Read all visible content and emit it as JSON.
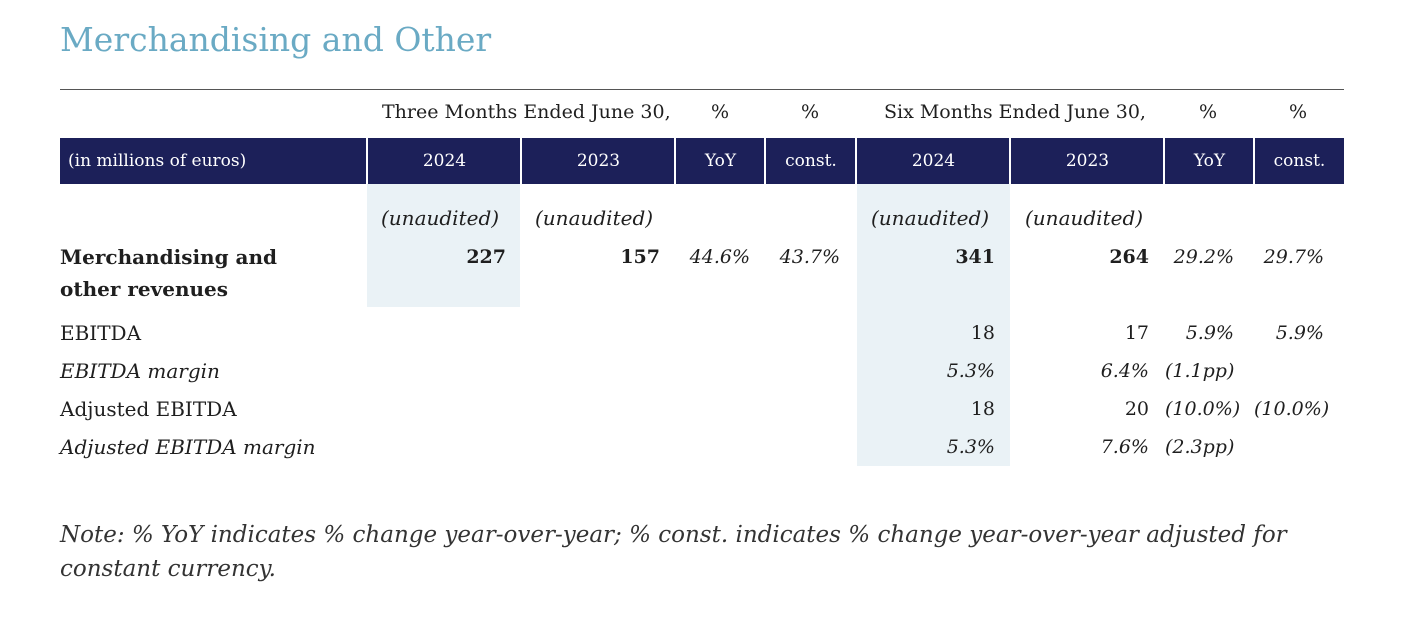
{
  "title": "Merchandising and Other",
  "groups": {
    "three_months": "Three Months Ended June 30,",
    "pct_yoy": "%",
    "pct_const": "%",
    "six_months": "Six Months Ended June 30,",
    "pct_yoy_6": "%",
    "pct_const_6": "%"
  },
  "header": {
    "unit_label": "(in millions of euros)",
    "cols": [
      "2024",
      "2023",
      "YoY",
      "const.",
      "2024",
      "2023",
      "YoY",
      "const."
    ]
  },
  "unaudited": [
    "(unaudited)",
    "(unaudited)",
    "(unaudited)",
    "(unaudited)"
  ],
  "rows": [
    {
      "label_line1": "Merchandising and",
      "label_line2": "other revenues",
      "values": [
        "227",
        "157",
        "44.6%",
        "43.7%",
        "341",
        "264",
        "29.2%",
        "29.7%"
      ]
    },
    {
      "label": "EBITDA",
      "values": [
        "",
        "",
        "",
        "",
        "18",
        "17",
        "5.9%",
        "5.9%"
      ]
    },
    {
      "label": "EBITDA margin",
      "values": [
        "",
        "",
        "",
        "",
        "5.3%",
        "6.4%",
        "(1.1pp)",
        ""
      ]
    },
    {
      "label": "Adjusted EBITDA",
      "values": [
        "",
        "",
        "",
        "",
        "18",
        "20",
        "(10.0%)",
        "(10.0%)"
      ]
    },
    {
      "label": "Adjusted EBITDA margin",
      "values": [
        "",
        "",
        "",
        "",
        "5.3%",
        "7.6%",
        "(2.3pp)",
        ""
      ]
    }
  ],
  "note": "Note: % YoY indicates % change year-over-year; % const. indicates % change year-over-year adjusted for constant currency.",
  "colors": {
    "title": "#6aaac4",
    "header_bg": "#1c2059",
    "highlight": "#eaf2f6"
  }
}
